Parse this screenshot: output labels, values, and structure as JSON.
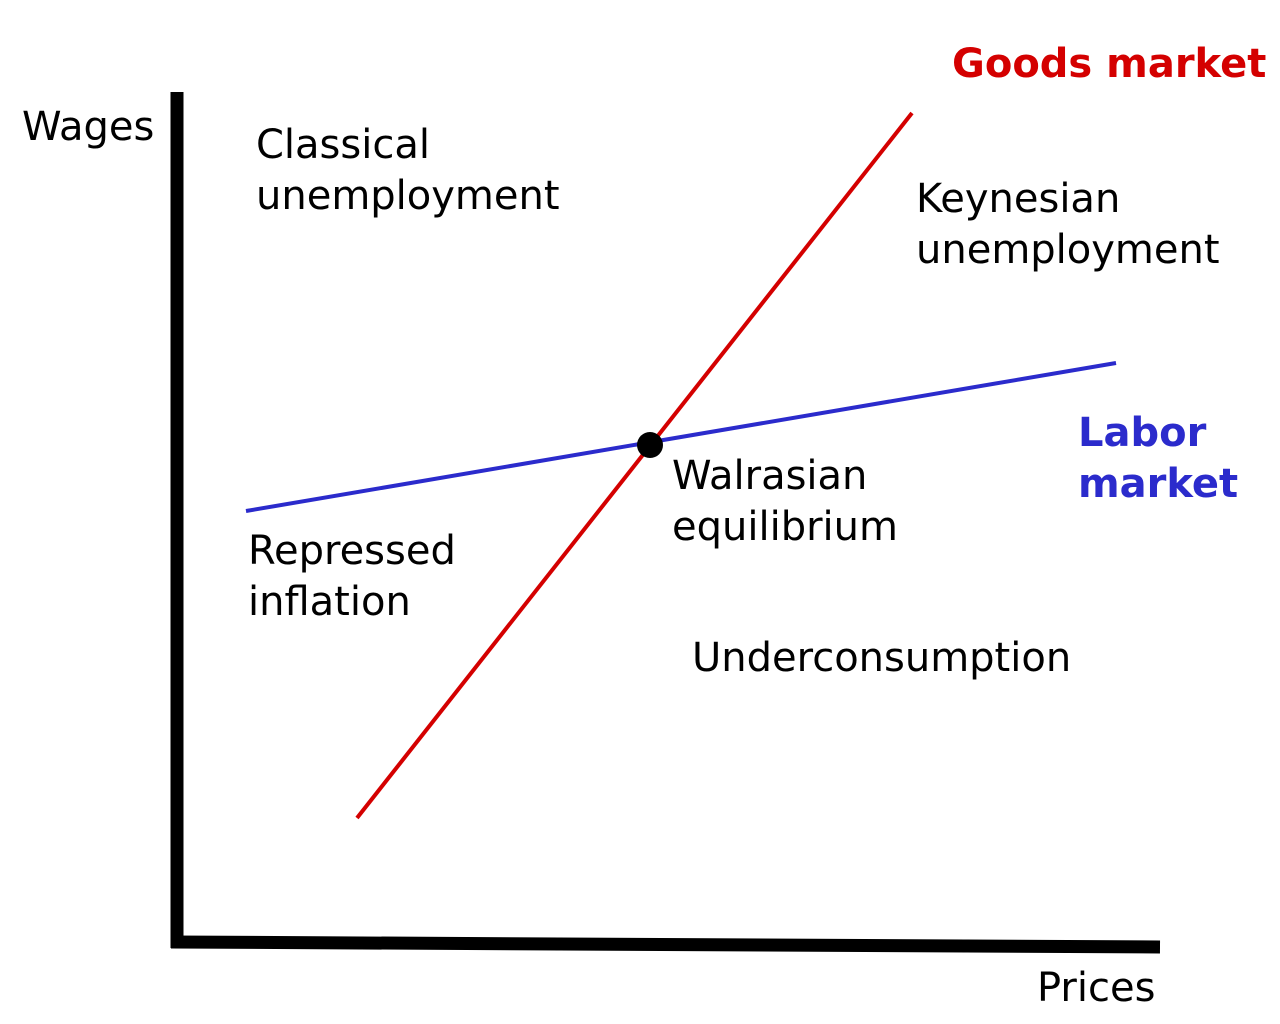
{
  "axes": {
    "y_label": "Wages",
    "x_label": "Prices"
  },
  "curves": {
    "goods_market": {
      "label": "Goods market",
      "color": "#d40000"
    },
    "labor_market": {
      "label_line1": "Labor",
      "label_line2": "market",
      "color": "#2b2bcc"
    }
  },
  "point": {
    "label_line1": "Walrasian",
    "label_line2": "equilibrium"
  },
  "regions": {
    "classical": {
      "line1": "Classical",
      "line2": "unemployment"
    },
    "keynesian": {
      "line1": "Keynesian",
      "line2": "unemployment"
    },
    "repressed": {
      "line1": "Repressed",
      "line2": "inflation"
    },
    "underconsumption": {
      "line1": "Underconsumption"
    }
  }
}
